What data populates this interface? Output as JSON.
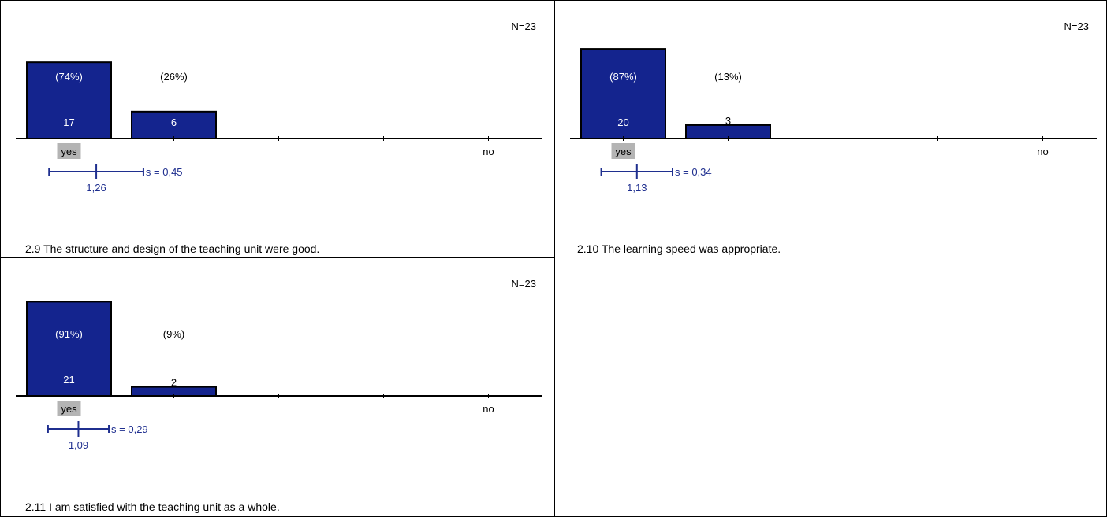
{
  "colors": {
    "bar_fill": "#14248e",
    "bar_stroke": "#000000",
    "axis": "#000000",
    "std_line": "#1f2f8f",
    "std_text": "#1f2f8f",
    "highlight_label_bg": "#b4b4b4",
    "cell_border": "#000000"
  },
  "chart_data": [
    {
      "type": "bar",
      "id": "q2_9",
      "question": "2.9 The structure and design of the teaching unit were good.",
      "n_label": "N=23",
      "scale": [
        1,
        2,
        3,
        4,
        5
      ],
      "scale_labels": {
        "left": "yes",
        "right": "no"
      },
      "counts": [
        17,
        6,
        0,
        0,
        0
      ],
      "percent_labels": [
        "(74%)",
        "(26%)",
        "",
        "",
        ""
      ],
      "count_labels": [
        "17",
        "6",
        "",
        "",
        ""
      ],
      "mean": 1.26,
      "mean_label": "1,26",
      "std": 0.45,
      "std_label": "s = 0,45",
      "ylim": [
        0,
        23
      ]
    },
    {
      "type": "bar",
      "id": "q2_10",
      "question": "2.10 The learning speed was appropriate.",
      "n_label": "N=23",
      "scale": [
        1,
        2,
        3,
        4,
        5
      ],
      "scale_labels": {
        "left": "yes",
        "right": "no"
      },
      "counts": [
        20,
        3,
        0,
        0,
        0
      ],
      "percent_labels": [
        "(87%)",
        "(13%)",
        "",
        "",
        ""
      ],
      "count_labels": [
        "20",
        "3",
        "",
        "",
        ""
      ],
      "mean": 1.13,
      "mean_label": "1,13",
      "std": 0.34,
      "std_label": "s = 0,34",
      "ylim": [
        0,
        23
      ]
    },
    {
      "type": "bar",
      "id": "q2_11",
      "question": "2.11 I am satisfied with the teaching unit as a whole.",
      "n_label": "N=23",
      "scale": [
        1,
        2,
        3,
        4,
        5
      ],
      "scale_labels": {
        "left": "yes",
        "right": "no"
      },
      "counts": [
        21,
        2,
        0,
        0,
        0
      ],
      "percent_labels": [
        "(91%)",
        "(9%)",
        "",
        "",
        ""
      ],
      "count_labels": [
        "21",
        "2",
        "",
        "",
        ""
      ],
      "mean": 1.09,
      "mean_label": "1,09",
      "std": 0.29,
      "std_label": "s = 0,29",
      "ylim": [
        0,
        23
      ]
    }
  ]
}
